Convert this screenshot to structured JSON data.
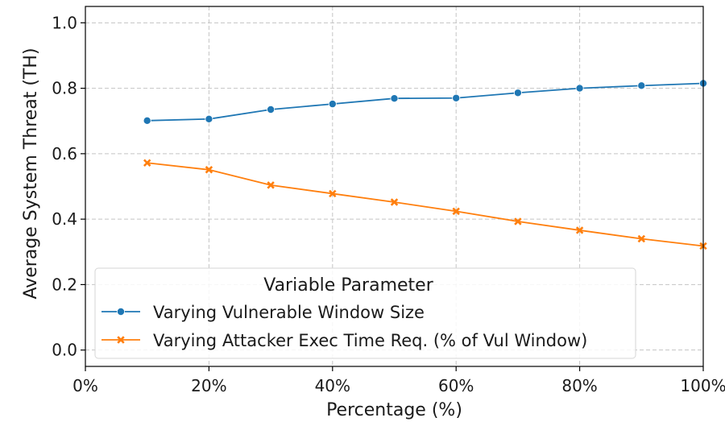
{
  "chart_data": {
    "type": "line",
    "xlabel": "Percentage (%)",
    "ylabel": "Average System Threat (TH)",
    "xlim": [
      0,
      100
    ],
    "ylim": [
      -0.05,
      1.05
    ],
    "x_ticks": [
      0,
      20,
      40,
      60,
      80,
      100
    ],
    "x_tick_labels": [
      "0%",
      "20%",
      "40%",
      "60%",
      "80%",
      "100%"
    ],
    "y_ticks": [
      0.0,
      0.2,
      0.4,
      0.6,
      0.8,
      1.0
    ],
    "y_tick_labels": [
      "0.0",
      "0.2",
      "0.4",
      "0.6",
      "0.8",
      "1.0"
    ],
    "grid": true,
    "legend": {
      "title": "Variable Parameter",
      "placement": "lower-left"
    },
    "x": [
      10,
      20,
      30,
      40,
      50,
      60,
      70,
      80,
      90,
      100
    ],
    "series": [
      {
        "name": "Varying Vulnerable Window Size",
        "color": "#1f77b4",
        "marker": "circle",
        "values": [
          0.701,
          0.706,
          0.735,
          0.752,
          0.769,
          0.77,
          0.786,
          0.8,
          0.808,
          0.815
        ]
      },
      {
        "name": "Varying Attacker Exec Time Req. (% of Vul Window)",
        "color": "#ff7f0e",
        "marker": "x",
        "values": [
          0.572,
          0.551,
          0.504,
          0.478,
          0.452,
          0.424,
          0.393,
          0.366,
          0.34,
          0.318
        ]
      }
    ]
  }
}
